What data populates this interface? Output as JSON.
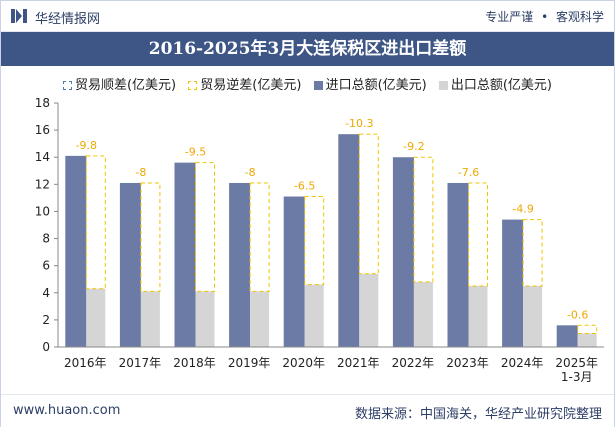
{
  "header": {
    "brand": "华经情报网",
    "tag1": "专业严谨",
    "separator": "•",
    "tag2": "客观科学"
  },
  "footer": {
    "site": "www.huaon.com",
    "source": "数据来源：中国海关，华经产业研究院整理"
  },
  "colors": {
    "title_bg": "#3d5686",
    "import": "#6b7ba5",
    "export": "#d5d5d5",
    "deficit_outline": "#f0c400",
    "surplus_outline": "#4a7ab8",
    "label": "#f0a800"
  },
  "chart_data": {
    "type": "bar",
    "title": "2016-2025年3月大连保税区进出口差额",
    "legend_placement": "top",
    "legend": [
      "贸易顺差(亿美元)",
      "贸易逆差(亿美元)",
      "进口总额(亿美元)",
      "出口总额(亿美元)"
    ],
    "categories": [
      "2016年",
      "2017年",
      "2018年",
      "2019年",
      "2020年",
      "2021年",
      "2022年",
      "2023年",
      "2024年",
      "2025年1-3月"
    ],
    "category_lines": [
      [
        "2016年"
      ],
      [
        "2017年"
      ],
      [
        "2018年"
      ],
      [
        "2019年"
      ],
      [
        "2020年"
      ],
      [
        "2021年"
      ],
      [
        "2022年"
      ],
      [
        "2023年"
      ],
      [
        "2024年"
      ],
      [
        "2025年",
        "1-3月"
      ]
    ],
    "series": [
      {
        "name": "进口总额(亿美元)",
        "values": [
          14.1,
          12.1,
          13.6,
          12.1,
          11.1,
          15.7,
          14.0,
          12.1,
          9.4,
          1.6
        ]
      },
      {
        "name": "出口总额(亿美元)",
        "values": [
          4.3,
          4.1,
          4.1,
          4.1,
          4.6,
          5.4,
          4.8,
          4.5,
          4.5,
          1.0
        ]
      },
      {
        "name": "贸易逆差(亿美元)",
        "values": [
          -9.8,
          -8,
          -9.5,
          -8,
          -6.5,
          -10.3,
          -9.2,
          -7.6,
          -4.9,
          -0.6
        ]
      }
    ],
    "data_labels": [
      "-9.8",
      "-8",
      "-9.5",
      "-8",
      "-6.5",
      "-10.3",
      "-9.2",
      "-7.6",
      "-4.9",
      "-0.6"
    ],
    "ylim": [
      0,
      18
    ],
    "yticks": [
      0,
      2,
      4,
      6,
      8,
      10,
      12,
      14,
      16,
      18
    ],
    "grid": false,
    "xlabel": "",
    "ylabel": ""
  }
}
